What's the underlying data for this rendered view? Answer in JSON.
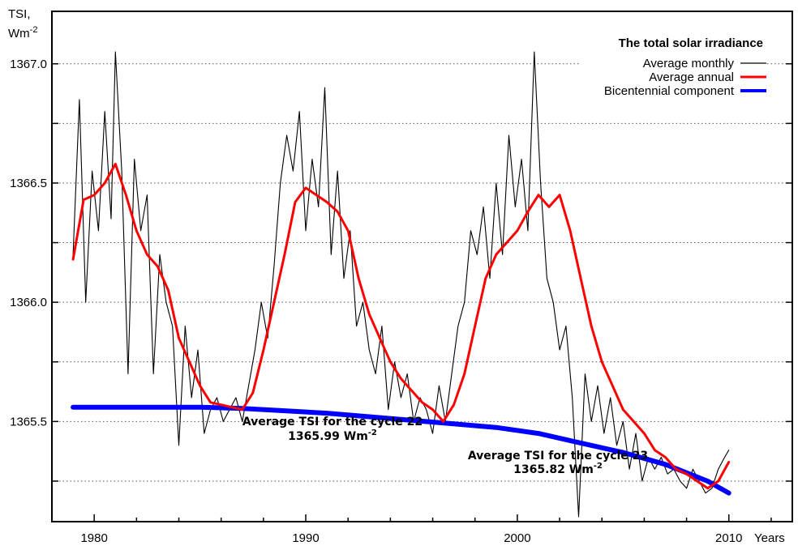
{
  "chart_data": {
    "type": "line",
    "title": "The total solar irradiance",
    "ylabel": [
      "TSI,",
      "Wm",
      "-2"
    ],
    "xlabel": "Years",
    "xlim": [
      1978,
      2013
    ],
    "ylim": [
      1365.08,
      1367.22
    ],
    "x_ticks": [
      1980,
      1990,
      2000,
      2010
    ],
    "y_ticks": [
      1365.5,
      1366.0,
      1366.5,
      1367.0
    ],
    "y_tick_labels": [
      "1365.5",
      "1366.0",
      "1366.5",
      "1367.0"
    ],
    "y_grid": [
      1365.25,
      1365.5,
      1365.75,
      1366.0,
      1366.25,
      1366.5,
      1366.75,
      1367.0
    ],
    "grid": "horizontal dotted",
    "legend": {
      "position": "top-right",
      "entries": [
        {
          "name": "Average monthly",
          "color": "#000000"
        },
        {
          "name": "Average annual",
          "color": "#ff0000"
        },
        {
          "name": "Bicentennial component",
          "color": "#0000ff"
        }
      ]
    },
    "series": [
      {
        "name": "Average monthly",
        "color": "#000000",
        "x": [
          1979.0,
          1979.3,
          1979.6,
          1979.9,
          1980.2,
          1980.5,
          1980.8,
          1981.0,
          1981.3,
          1981.6,
          1981.9,
          1982.2,
          1982.5,
          1982.8,
          1983.1,
          1983.4,
          1983.7,
          1984.0,
          1984.3,
          1984.6,
          1984.9,
          1985.2,
          1985.5,
          1985.8,
          1986.1,
          1986.4,
          1986.7,
          1987.0,
          1987.3,
          1987.6,
          1987.9,
          1988.2,
          1988.5,
          1988.8,
          1989.1,
          1989.4,
          1989.7,
          1990.0,
          1990.3,
          1990.6,
          1990.9,
          1991.2,
          1991.5,
          1991.8,
          1992.1,
          1992.4,
          1992.7,
          1993.0,
          1993.3,
          1993.6,
          1993.9,
          1994.2,
          1994.5,
          1994.8,
          1995.1,
          1995.4,
          1995.7,
          1996.0,
          1996.3,
          1996.6,
          1996.9,
          1997.2,
          1997.5,
          1997.8,
          1998.1,
          1998.4,
          1998.7,
          1999.0,
          1999.3,
          1999.6,
          1999.9,
          2000.2,
          2000.5,
          2000.8,
          2001.1,
          2001.4,
          2001.7,
          2002.0,
          2002.3,
          2002.6,
          2002.9,
          2003.2,
          2003.5,
          2003.8,
          2004.1,
          2004.4,
          2004.7,
          2005.0,
          2005.3,
          2005.6,
          2005.9,
          2006.2,
          2006.5,
          2006.8,
          2007.1,
          2007.4,
          2007.7,
          2008.0,
          2008.3,
          2008.6,
          2008.9,
          2009.2,
          2009.5,
          2009.8,
          2010.0
        ],
        "values": [
          1366.2,
          1366.85,
          1366.0,
          1366.55,
          1366.3,
          1366.8,
          1366.35,
          1367.05,
          1366.55,
          1365.7,
          1366.6,
          1366.3,
          1366.45,
          1365.7,
          1366.2,
          1366.0,
          1365.9,
          1365.4,
          1365.9,
          1365.6,
          1365.8,
          1365.45,
          1365.55,
          1365.6,
          1365.5,
          1365.55,
          1365.6,
          1365.5,
          1365.65,
          1365.8,
          1366.0,
          1365.85,
          1366.15,
          1366.5,
          1366.7,
          1366.55,
          1366.8,
          1366.3,
          1366.6,
          1366.4,
          1366.9,
          1366.2,
          1366.55,
          1366.1,
          1366.3,
          1365.9,
          1366.0,
          1365.8,
          1365.7,
          1365.9,
          1365.55,
          1365.75,
          1365.6,
          1365.7,
          1365.5,
          1365.6,
          1365.55,
          1365.45,
          1365.65,
          1365.5,
          1365.7,
          1365.9,
          1366.0,
          1366.3,
          1366.2,
          1366.4,
          1366.1,
          1366.5,
          1366.2,
          1366.7,
          1366.4,
          1366.6,
          1366.3,
          1367.05,
          1366.5,
          1366.1,
          1366.0,
          1365.8,
          1365.9,
          1365.6,
          1365.1,
          1365.7,
          1365.5,
          1365.65,
          1365.45,
          1365.6,
          1365.4,
          1365.5,
          1365.3,
          1365.45,
          1365.25,
          1365.35,
          1365.3,
          1365.35,
          1365.28,
          1365.3,
          1365.25,
          1365.22,
          1365.3,
          1365.25,
          1365.2,
          1365.22,
          1365.3,
          1365.35,
          1365.38
        ]
      },
      {
        "name": "Average annual",
        "color": "#ff0000",
        "x": [
          1979.0,
          1979.5,
          1980.0,
          1980.5,
          1981.0,
          1981.5,
          1982.0,
          1982.5,
          1983.0,
          1983.5,
          1984.0,
          1984.5,
          1985.0,
          1985.5,
          1986.0,
          1986.5,
          1987.0,
          1987.5,
          1988.0,
          1988.5,
          1989.0,
          1989.5,
          1990.0,
          1990.5,
          1991.0,
          1991.5,
          1992.0,
          1992.5,
          1993.0,
          1993.5,
          1994.0,
          1994.5,
          1995.0,
          1995.5,
          1996.0,
          1996.5,
          1997.0,
          1997.5,
          1998.0,
          1998.5,
          1999.0,
          1999.5,
          2000.0,
          2000.5,
          2001.0,
          2001.5,
          2002.0,
          2002.5,
          2003.0,
          2003.5,
          2004.0,
          2004.5,
          2005.0,
          2005.5,
          2006.0,
          2006.5,
          2007.0,
          2007.5,
          2008.0,
          2008.5,
          2009.0,
          2009.5,
          2010.0
        ],
        "values": [
          1366.18,
          1366.43,
          1366.45,
          1366.5,
          1366.58,
          1366.45,
          1366.3,
          1366.2,
          1366.15,
          1366.05,
          1365.85,
          1365.75,
          1365.65,
          1365.58,
          1365.57,
          1365.56,
          1365.55,
          1365.62,
          1365.8,
          1366.0,
          1366.2,
          1366.42,
          1366.48,
          1366.45,
          1366.42,
          1366.38,
          1366.3,
          1366.1,
          1365.95,
          1365.85,
          1365.75,
          1365.68,
          1365.63,
          1365.58,
          1365.55,
          1365.5,
          1365.57,
          1365.7,
          1365.9,
          1366.1,
          1366.2,
          1366.25,
          1366.3,
          1366.38,
          1366.45,
          1366.4,
          1366.45,
          1366.3,
          1366.1,
          1365.9,
          1365.75,
          1365.65,
          1365.55,
          1365.5,
          1365.45,
          1365.38,
          1365.35,
          1365.3,
          1365.28,
          1365.25,
          1365.22,
          1365.25,
          1365.33
        ]
      },
      {
        "name": "Bicentennial component",
        "color": "#0000ff",
        "x": [
          1979,
          1981,
          1983,
          1985,
          1987,
          1989,
          1991,
          1993,
          1995,
          1997,
          1999,
          2001,
          2003,
          2005,
          2007,
          2009,
          2010
        ],
        "values": [
          1365.56,
          1365.56,
          1365.56,
          1365.56,
          1365.555,
          1365.545,
          1365.535,
          1365.52,
          1365.505,
          1365.49,
          1365.475,
          1365.45,
          1365.41,
          1365.37,
          1365.32,
          1365.25,
          1365.2
        ]
      }
    ],
    "annotations": [
      {
        "line1": "Average TSI for the cycle 22",
        "line2_value": "1365.99 Wm",
        "line2_sup": "-2",
        "x": 1992.5,
        "y": 1365.45
      },
      {
        "line1": "Average TSI for the cycle 23",
        "line2_value": "1365.82 Wm",
        "line2_sup": "-2",
        "x": 2003.5,
        "y": 1365.3
      }
    ]
  }
}
